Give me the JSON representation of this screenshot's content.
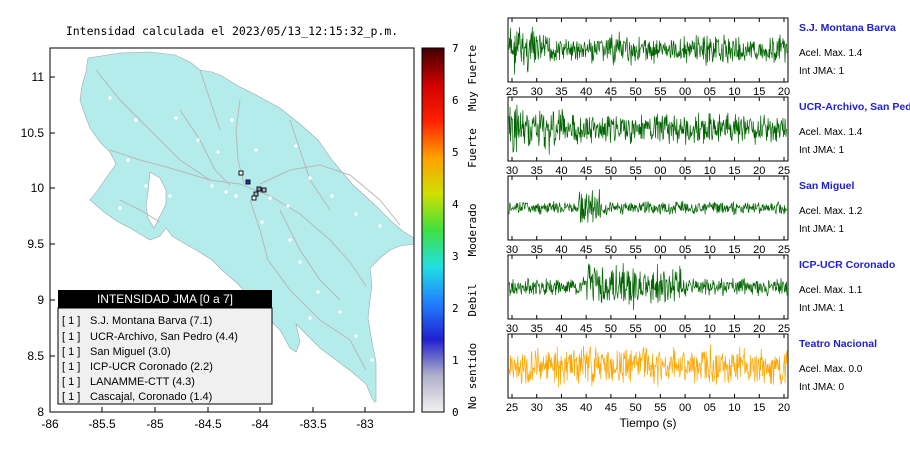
{
  "map": {
    "title": "Intensidad calculada el 2023/05/13_12:15:32_p.m.",
    "x_ticks": [
      "-86",
      "-85.5",
      "-85",
      "-84.5",
      "-84",
      "-83.5",
      "-83"
    ],
    "y_ticks": [
      "11",
      "10.5",
      "10",
      "9.5",
      "9",
      "8.5",
      "8"
    ],
    "legend": {
      "header": "INTENSIDAD JMA [0 a 7]",
      "items": [
        {
          "level": "[ 1 ]",
          "label": "S.J. Montana Barva (7.1)"
        },
        {
          "level": "[ 1 ]",
          "label": "UCR-Archivo, San Pedro (4.4)"
        },
        {
          "level": "[ 1 ]",
          "label": "San Miguel (3.0)"
        },
        {
          "level": "[ 1 ]",
          "label": "ICP-UCR Coronado (2.2)"
        },
        {
          "level": "[ 1 ]",
          "label": "LANAMME-CTT (4.3)"
        },
        {
          "level": "[ 1 ]",
          "label": "Cascajal, Coronado (1.4)"
        }
      ]
    }
  },
  "colorbar": {
    "ticks": [
      "7",
      "6",
      "5",
      "4",
      "3",
      "2",
      "1",
      "0"
    ],
    "category_labels": [
      "Muy Fuerte",
      "Fuerte",
      "Moderado",
      "Debil",
      "No sentido"
    ],
    "colors": [
      "#f2f2f2",
      "#b0b0c8",
      "#2020d0",
      "#2080ff",
      "#20e0e0",
      "#40e040",
      "#d0e000",
      "#ffa000",
      "#ff2000",
      "#d00000",
      "#400000"
    ]
  },
  "traces": {
    "xlabel": "Tiempo (s)",
    "stations": [
      {
        "name": "S.J. Montana Barva",
        "accel": "Acel. Max. 1.4",
        "jma": "Int JMA: 1",
        "color": "#006400",
        "ticks": [
          "25",
          "30",
          "35",
          "40",
          "45",
          "50",
          "55",
          "00",
          "05",
          "10",
          "15",
          "20"
        ]
      },
      {
        "name": "UCR-Archivo, San Pedro",
        "accel": "Acel. Max. 1.4",
        "jma": "Int JMA: 1",
        "color": "#006400",
        "ticks": [
          "30",
          "35",
          "40",
          "45",
          "50",
          "55",
          "00",
          "05",
          "10",
          "15",
          "20",
          "25"
        ]
      },
      {
        "name": "San Miguel",
        "accel": "Acel. Max. 1.2",
        "jma": "Int JMA: 1",
        "color": "#006400",
        "ticks": [
          "30",
          "35",
          "40",
          "45",
          "50",
          "55",
          "00",
          "05",
          "10",
          "15",
          "20",
          "25"
        ]
      },
      {
        "name": "ICP-UCR Coronado",
        "accel": "Acel. Max. 1.1",
        "jma": "Int JMA: 1",
        "color": "#006400",
        "ticks": [
          "30",
          "35",
          "40",
          "45",
          "50",
          "55",
          "00",
          "05",
          "10",
          "15",
          "20",
          "25"
        ]
      },
      {
        "name": "Teatro Nacional",
        "accel": "Acel. Max. 0.0",
        "jma": "Int JMA: 0",
        "color": "#ffa500",
        "ticks": [
          "25",
          "30",
          "35",
          "40",
          "45",
          "50",
          "55",
          "00",
          "05",
          "10",
          "15",
          "20"
        ]
      }
    ]
  }
}
